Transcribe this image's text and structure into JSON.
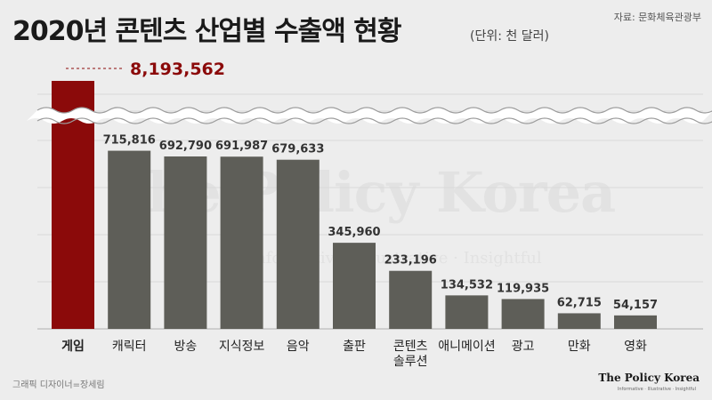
{
  "header": {
    "title": "2020년 콘텐츠 산업별 수출액 현황",
    "unit": "(단위: 천 달러)",
    "source": "자료: 문화체육관광부"
  },
  "watermark": {
    "brand": "The Policy Korea",
    "tagline": "Informative · Illustrative · Insightful"
  },
  "footer": {
    "designer": "그래픽 디자이너=장세림",
    "brand": "The Policy Korea",
    "brand_tagline": "Informative · Illustrative · Insightful"
  },
  "colors": {
    "highlight_bar": "#8b0a0a",
    "bar": "#5e5e58",
    "highlight_label": "#8b0a0a",
    "background": "#ededed"
  },
  "chart_data": {
    "type": "bar",
    "title": "2020년 콘텐츠 산업별 수출액 현황",
    "unit": "(단위: 천 달러)",
    "categories": [
      "게임",
      "캐릭터",
      "방송",
      "지식정보",
      "음악",
      "출판",
      "콘텐츠 솔루션",
      "애니메이션",
      "광고",
      "만화",
      "영화"
    ],
    "values": [
      8193562,
      715816,
      692790,
      691987,
      679633,
      345960,
      233196,
      134532,
      119935,
      62715,
      54157
    ],
    "value_labels": [
      "8,193,562",
      "715,816",
      "692,790",
      "691,987",
      "679,633",
      "345,960",
      "233,196",
      "134,532",
      "119,935",
      "62,715",
      "54,157"
    ],
    "highlight": "게임",
    "axis_break": true,
    "ylim": [
      0,
      900000
    ],
    "grid": true,
    "xlabel": "",
    "ylabel": ""
  }
}
